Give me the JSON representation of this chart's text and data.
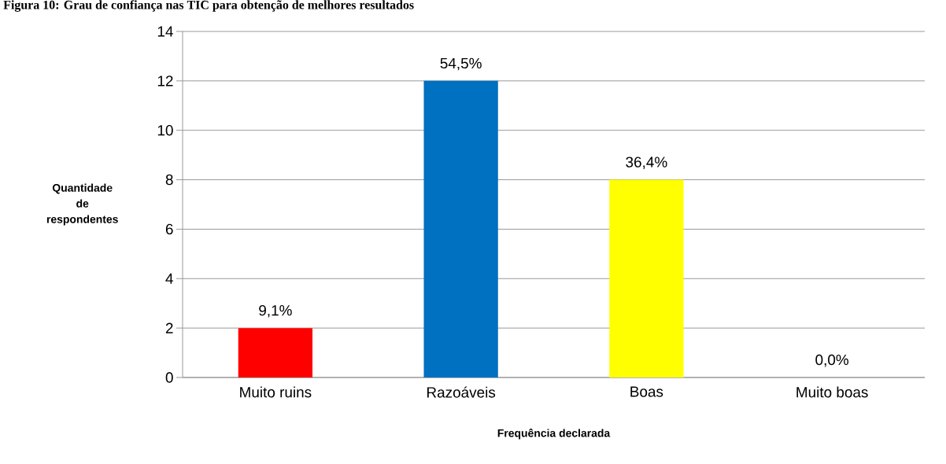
{
  "chart_data": {
    "type": "bar",
    "title": "Figura 10: Grau de confiança nas TIC para obtenção de melhores resultados",
    "categories": [
      "Muito ruins",
      "Razoáveis",
      "Boas",
      "Muito boas"
    ],
    "values": [
      2,
      12,
      8,
      0
    ],
    "colors": [
      "#ff0000",
      "#0070c0",
      "#ffff00",
      "#92d050"
    ],
    "annotations": [
      {
        "text": "9,1%",
        "x": "Muito ruins",
        "y": 2
      },
      {
        "text": "54,5%",
        "x": "Razoáveis",
        "y": 12
      },
      {
        "text": "36,4%",
        "x": "Boas",
        "y": 8
      },
      {
        "text": "0,0%",
        "x": "Muito boas",
        "y": 0
      }
    ],
    "xlabel": "Frequência declarada",
    "ylabel": "Quantidade de respondentes",
    "ylim": [
      0,
      14
    ],
    "yticks": [
      0,
      2,
      4,
      6,
      8,
      10,
      12,
      14
    ],
    "grid": "y"
  }
}
